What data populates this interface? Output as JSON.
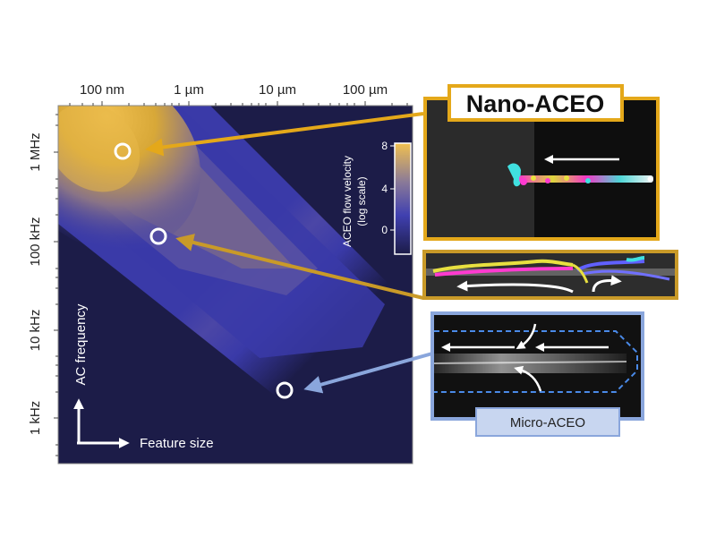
{
  "x_axis": {
    "ticks": [
      "100 nm",
      "1 µm",
      "10 µm",
      "100 µm"
    ]
  },
  "y_axis": {
    "ticks": [
      "1 MHz",
      "100 kHz",
      "10 kHz",
      "1 kHz"
    ]
  },
  "map_labels": {
    "y_arrow_label": "AC frequency",
    "x_arrow_label": "Feature size"
  },
  "colorbar": {
    "title_line1": "ACEO flow velocity",
    "title_line2": "(log scale)",
    "ticks": [
      "8",
      "4",
      "0"
    ],
    "colors": [
      "#f0c050",
      "#4040b0",
      "#1c1c48"
    ]
  },
  "callouts": {
    "nano_title": "Nano-ACEO",
    "micro_label": "Micro-ACEO"
  },
  "colors": {
    "nano_gold": "#e4a81a",
    "mid_gold": "#c99a28",
    "micro_blue": "#8aa6dc",
    "map_background": "#1c1c48",
    "map_blue": "#3a3aa8",
    "map_gold": "#d8a838"
  }
}
